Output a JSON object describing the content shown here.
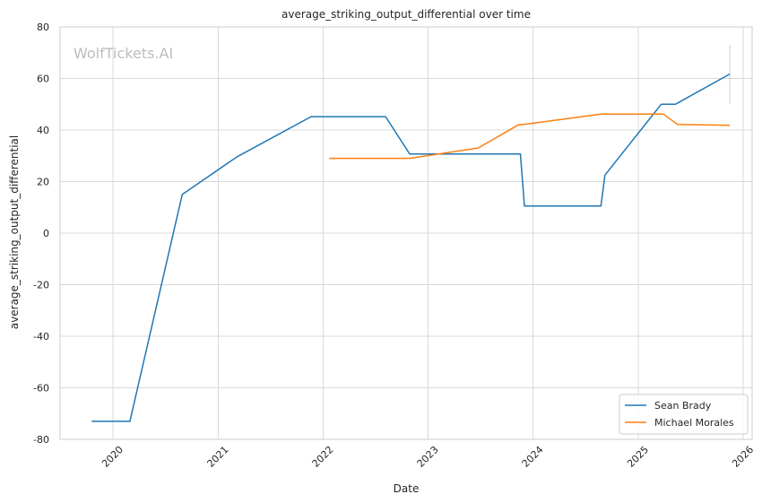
{
  "chart_data": {
    "type": "line",
    "title": "average_striking_output_differential over time",
    "xlabel": "Date",
    "ylabel": "average_striking_output_differential",
    "watermark": "WolfTickets.AI",
    "xlim": [
      "2019-07-01",
      "2026-02-01"
    ],
    "ylim": [
      -80,
      80
    ],
    "x_ticks": [
      "2020",
      "2021",
      "2022",
      "2023",
      "2024",
      "2025",
      "2026"
    ],
    "y_ticks": [
      -80,
      -60,
      -40,
      -20,
      0,
      20,
      40,
      60,
      80
    ],
    "grid": true,
    "legend_position": "bottom-right",
    "series": [
      {
        "name": "Sean Brady",
        "color": "#1f77b4",
        "points": [
          {
            "x": "2019-10-19",
            "y": -73
          },
          {
            "x": "2020-02-29",
            "y": -73
          },
          {
            "x": "2020-08-29",
            "y": 15
          },
          {
            "x": "2021-03-06",
            "y": 29.5
          },
          {
            "x": "2021-11-20",
            "y": 45.2
          },
          {
            "x": "2022-08-06",
            "y": 45.2
          },
          {
            "x": "2022-10-29",
            "y": 30.7
          },
          {
            "x": "2023-11-18",
            "y": 30.7
          },
          {
            "x": "2023-12-02",
            "y": 10.5
          },
          {
            "x": "2024-08-24",
            "y": 10.5
          },
          {
            "x": "2024-09-07",
            "y": 22.5
          },
          {
            "x": "2025-03-22",
            "y": 50
          },
          {
            "x": "2025-05-10",
            "y": 50
          },
          {
            "x": "2025-11-15",
            "y": 61.7
          }
        ]
      },
      {
        "name": "Michael Morales",
        "color": "#ff7f0e",
        "points": [
          {
            "x": "2022-01-22",
            "y": 29
          },
          {
            "x": "2022-10-29",
            "y": 29
          },
          {
            "x": "2023-06-24",
            "y": 33
          },
          {
            "x": "2023-11-11",
            "y": 42
          },
          {
            "x": "2023-12-09",
            "y": 42.3
          },
          {
            "x": "2024-08-24",
            "y": 46.2
          },
          {
            "x": "2025-03-29",
            "y": 46.2
          },
          {
            "x": "2025-05-17",
            "y": 42.2
          },
          {
            "x": "2025-11-15",
            "y": 41.8
          }
        ]
      }
    ],
    "error_bar": {
      "x": "2025-11-15",
      "y_low": 50,
      "y_high": 73,
      "color": "#1f77b4"
    }
  }
}
